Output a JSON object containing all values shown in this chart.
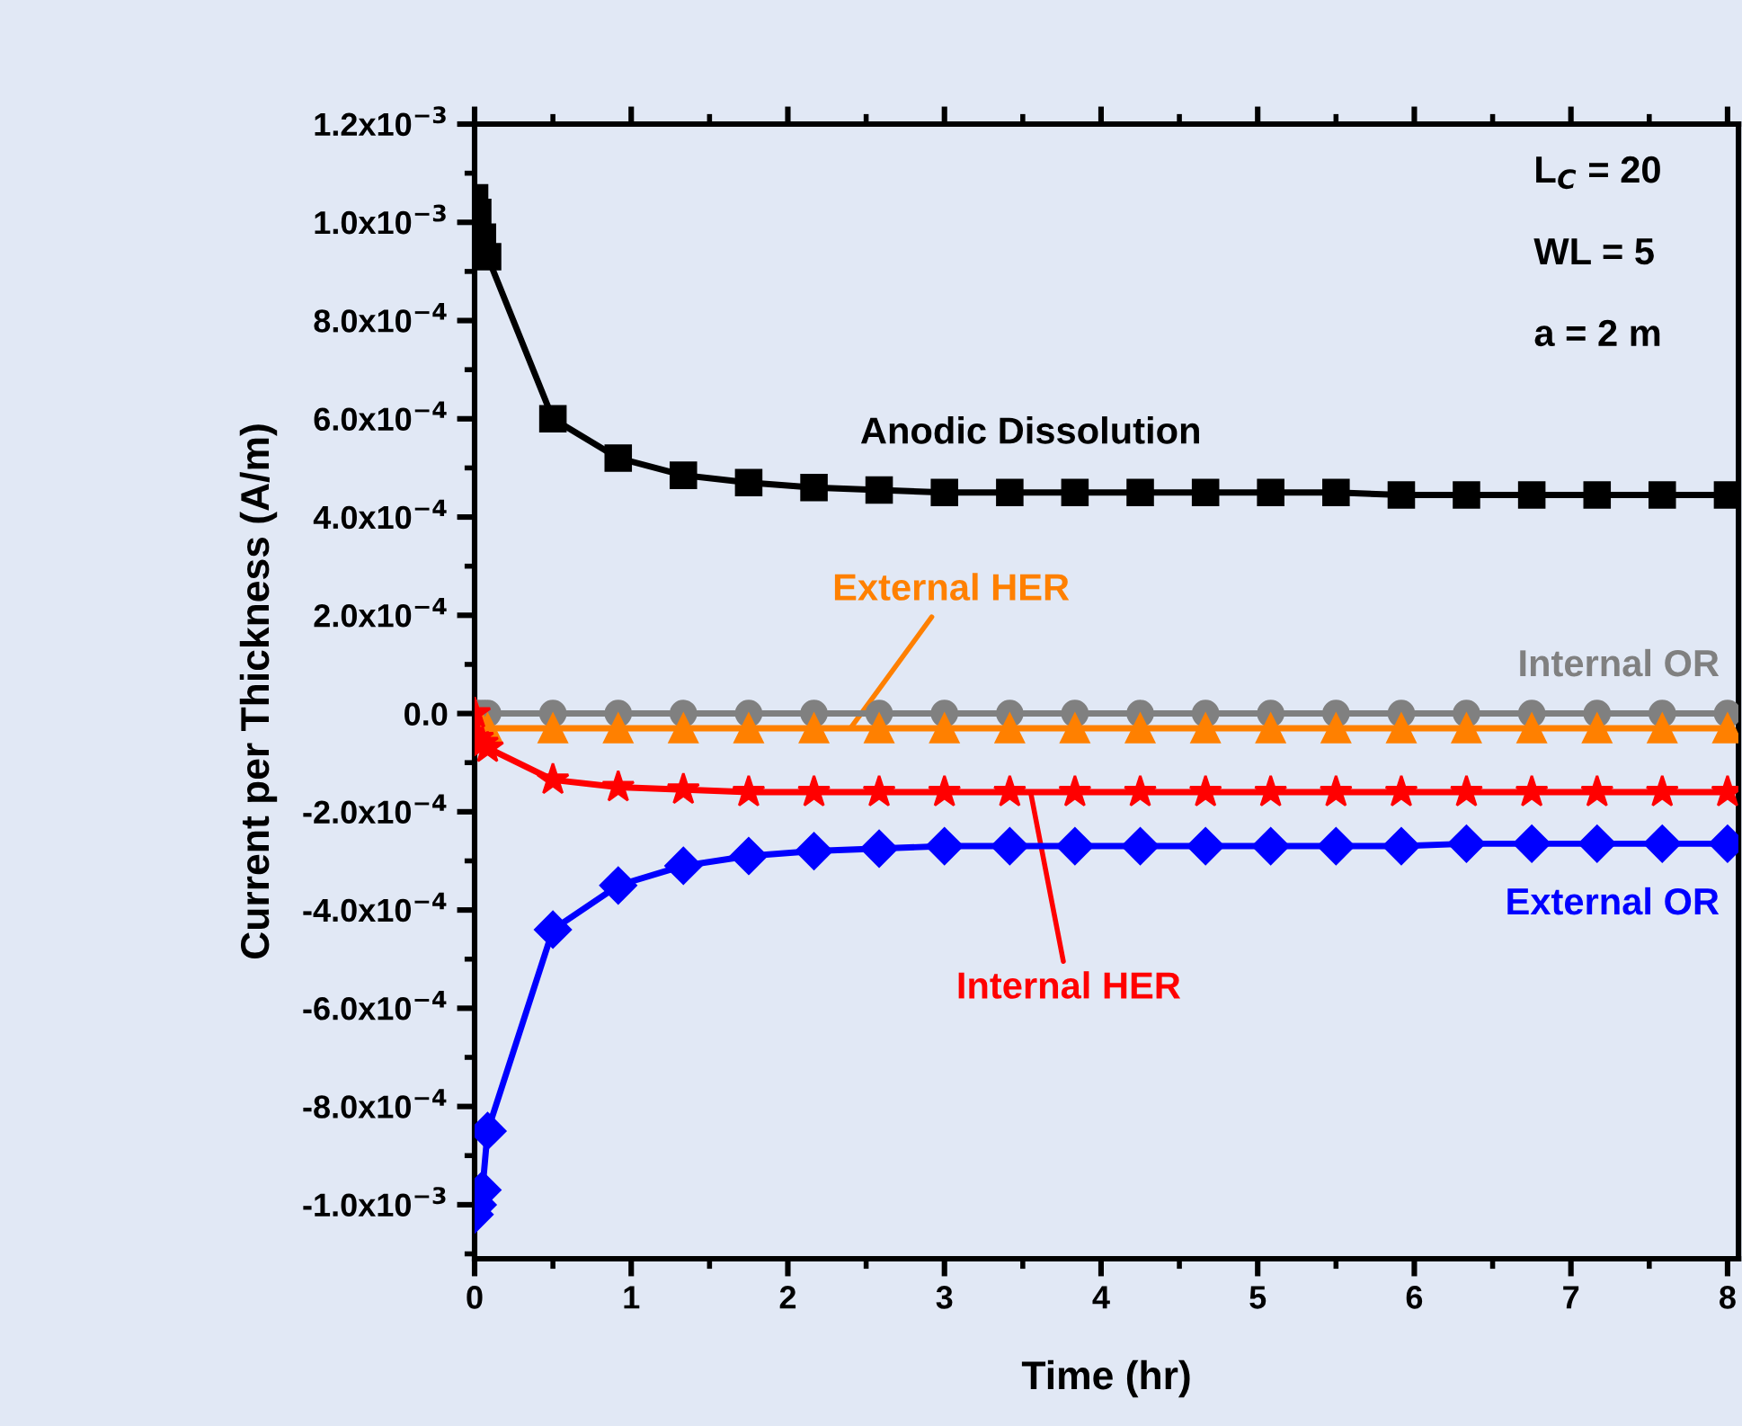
{
  "chart_data": {
    "type": "line",
    "xlabel": "Time (hr)",
    "ylabel": "Current per Thickness (A/m)",
    "x": [
      0,
      0.02,
      0.05,
      0.083,
      0.5,
      0.917,
      1.333,
      1.75,
      2.167,
      2.583,
      3.0,
      3.417,
      3.833,
      4.25,
      4.667,
      5.083,
      5.5,
      5.917,
      6.333,
      6.75,
      7.167,
      7.583,
      8.0
    ],
    "series": [
      {
        "name": "Anodic Dissolution",
        "color": "#000000",
        "marker": "square",
        "values": [
          0.00105,
          0.00102,
          0.00097,
          0.00093,
          0.0006,
          0.00052,
          0.000485,
          0.00047,
          0.00046,
          0.000455,
          0.00045,
          0.00045,
          0.00045,
          0.00045,
          0.00045,
          0.00045,
          0.00045,
          0.000445,
          0.000445,
          0.000445,
          0.000445,
          0.000445,
          0.000445
        ]
      },
      {
        "name": "Internal OR",
        "color": "#808080",
        "marker": "circle",
        "values": [
          0,
          0,
          0,
          0,
          0,
          0,
          0,
          0,
          0,
          0,
          0,
          0,
          0,
          0,
          0,
          0,
          0,
          0,
          0,
          0,
          0,
          0,
          0
        ]
      },
      {
        "name": "External HER",
        "color": "#ff8000",
        "marker": "triangle",
        "values": [
          0,
          -2e-05,
          -3e-05,
          -3e-05,
          -3e-05,
          -3e-05,
          -3e-05,
          -3e-05,
          -3e-05,
          -3e-05,
          -3e-05,
          -3e-05,
          -3e-05,
          -3e-05,
          -3e-05,
          -3e-05,
          -3e-05,
          -3e-05,
          -3e-05,
          -3e-05,
          -3e-05,
          -3e-05,
          -3e-05
        ]
      },
      {
        "name": "Internal HER",
        "color": "#ff0000",
        "marker": "star",
        "values": [
          0,
          -5e-05,
          -6e-05,
          -7e-05,
          -0.000135,
          -0.00015,
          -0.000155,
          -0.00016,
          -0.00016,
          -0.00016,
          -0.00016,
          -0.00016,
          -0.00016,
          -0.00016,
          -0.00016,
          -0.00016,
          -0.00016,
          -0.00016,
          -0.00016,
          -0.00016,
          -0.00016,
          -0.00016,
          -0.00016
        ]
      },
      {
        "name": "External OR",
        "color": "#0000ff",
        "marker": "diamond",
        "values": [
          -0.00102,
          -0.001,
          -0.00097,
          -0.00085,
          -0.00044,
          -0.00035,
          -0.00031,
          -0.00029,
          -0.00028,
          -0.000275,
          -0.00027,
          -0.00027,
          -0.00027,
          -0.00027,
          -0.00027,
          -0.00027,
          -0.00027,
          -0.00027,
          -0.000265,
          -0.000265,
          -0.000265,
          -0.000265,
          -0.000265
        ]
      }
    ],
    "xlim": [
      0,
      8.07
    ],
    "xticks": [
      0,
      1,
      2,
      3,
      4,
      5,
      6,
      7,
      8
    ],
    "ylim": [
      -0.00111,
      0.0012
    ],
    "yticks": [
      {
        "value": -0.001,
        "label": "-1.0x10$^{−3}$"
      },
      {
        "value": -0.0008,
        "label": "-8.0x10$^{−4}$"
      },
      {
        "value": -0.0006,
        "label": "-6.0x10$^{−4}$"
      },
      {
        "value": -0.0004,
        "label": "-4.0x10$^{−4}$"
      },
      {
        "value": -0.0002,
        "label": "-2.0x10$^{−4}$"
      },
      {
        "value": 0,
        "label": "0.0"
      },
      {
        "value": 0.0002,
        "label": "2.0x10$^{−4}$"
      },
      {
        "value": 0.0004,
        "label": "4.0x10$^{−4}$"
      },
      {
        "value": 0.0006,
        "label": "6.0x10$^{−4}$"
      },
      {
        "value": 0.0008,
        "label": "8.0x10$^{−4}$"
      },
      {
        "value": 0.001,
        "label": "1.0x10$^{−3}$"
      },
      {
        "value": 0.0012,
        "label": "1.2x10$^{−3}$"
      }
    ],
    "annotations": [
      "L$_{C}$ = 20",
      "WL = 5",
      "a = 2 m"
    ],
    "grid": false,
    "legend": false,
    "line_style": "solid"
  }
}
